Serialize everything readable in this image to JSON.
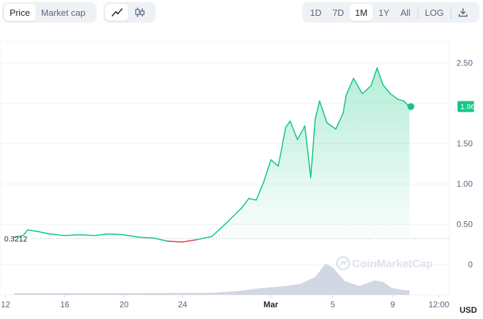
{
  "toolbar": {
    "metric_tabs": [
      "Price",
      "Market cap"
    ],
    "active_metric": "Price",
    "chart_types": [
      "line-chart-icon",
      "candlestick-icon"
    ],
    "active_chart_type": "line-chart-icon",
    "ranges": [
      "1D",
      "7D",
      "1M",
      "1Y",
      "All",
      "LOG"
    ],
    "active_range": "1M",
    "download_icon": "download-icon"
  },
  "watermark": "CoinMarketCap",
  "colors": {
    "up": "#16c784",
    "down": "#ea3943",
    "volume": "#ccd3e0",
    "grid": "#eff2f5"
  },
  "chart_data": {
    "type": "line",
    "currency": "USD",
    "start_price_label": "0.3212",
    "current_price_label": "1.96",
    "y_ticks": [
      "2.50",
      "2.00",
      "1.50",
      "1.00",
      "0.50",
      "0"
    ],
    "x_ticks": [
      "12",
      "16",
      "20",
      "24",
      "Mar",
      "5",
      "9",
      "12:00"
    ],
    "ylim": [
      0,
      2.6
    ],
    "baseline": 0.3212,
    "price_series": [
      {
        "t": 12.6,
        "v": 0.34
      },
      {
        "t": 13.2,
        "v": 0.36
      },
      {
        "t": 13.5,
        "v": 0.43
      },
      {
        "t": 14.2,
        "v": 0.41
      },
      {
        "t": 15.0,
        "v": 0.38
      },
      {
        "t": 16.0,
        "v": 0.36
      },
      {
        "t": 17.0,
        "v": 0.37
      },
      {
        "t": 18.0,
        "v": 0.36
      },
      {
        "t": 19.0,
        "v": 0.38
      },
      {
        "t": 20.0,
        "v": 0.37
      },
      {
        "t": 21.0,
        "v": 0.34
      },
      {
        "t": 22.0,
        "v": 0.33
      },
      {
        "t": 23.0,
        "v": 0.29
      },
      {
        "t": 24.0,
        "v": 0.28
      },
      {
        "t": 25.0,
        "v": 0.31
      },
      {
        "t": 26.0,
        "v": 0.35
      },
      {
        "t": 27.0,
        "v": 0.52
      },
      {
        "t": 28.0,
        "v": 0.7
      },
      {
        "t": 28.5,
        "v": 0.82
      },
      {
        "t": 29.0,
        "v": 0.8
      },
      {
        "t": 29.5,
        "v": 1.02
      },
      {
        "t": 30.0,
        "v": 1.3
      },
      {
        "t": 30.5,
        "v": 1.22
      },
      {
        "t": 31.0,
        "v": 1.7
      },
      {
        "t": 31.3,
        "v": 1.78
      },
      {
        "t": 31.8,
        "v": 1.55
      },
      {
        "t": 32.3,
        "v": 1.72
      },
      {
        "t": 32.7,
        "v": 1.08
      },
      {
        "t": 33.0,
        "v": 1.8
      },
      {
        "t": 33.3,
        "v": 2.03
      },
      {
        "t": 33.8,
        "v": 1.76
      },
      {
        "t": 34.4,
        "v": 1.68
      },
      {
        "t": 34.9,
        "v": 1.88
      },
      {
        "t": 35.1,
        "v": 2.1
      },
      {
        "t": 35.6,
        "v": 2.31
      },
      {
        "t": 36.2,
        "v": 2.12
      },
      {
        "t": 36.8,
        "v": 2.22
      },
      {
        "t": 37.2,
        "v": 2.44
      },
      {
        "t": 37.6,
        "v": 2.23
      },
      {
        "t": 38.1,
        "v": 2.12
      },
      {
        "t": 38.6,
        "v": 2.05
      },
      {
        "t": 39.0,
        "v": 2.03
      },
      {
        "t": 39.4,
        "v": 1.96
      }
    ],
    "volume_series": [
      {
        "t": 12.6,
        "v": 0.5
      },
      {
        "t": 20.0,
        "v": 0.5
      },
      {
        "t": 26.0,
        "v": 0.6
      },
      {
        "t": 28.0,
        "v": 1.2
      },
      {
        "t": 29.0,
        "v": 1.8
      },
      {
        "t": 30.0,
        "v": 2.2
      },
      {
        "t": 31.0,
        "v": 2.6
      },
      {
        "t": 32.0,
        "v": 3.2
      },
      {
        "t": 33.0,
        "v": 5.2
      },
      {
        "t": 33.7,
        "v": 9.0
      },
      {
        "t": 34.2,
        "v": 8.0
      },
      {
        "t": 35.0,
        "v": 4.0
      },
      {
        "t": 36.0,
        "v": 2.6
      },
      {
        "t": 37.0,
        "v": 4.2
      },
      {
        "t": 37.6,
        "v": 3.8
      },
      {
        "t": 38.2,
        "v": 2.0
      },
      {
        "t": 39.0,
        "v": 1.4
      },
      {
        "t": 39.4,
        "v": 1.3
      }
    ]
  }
}
